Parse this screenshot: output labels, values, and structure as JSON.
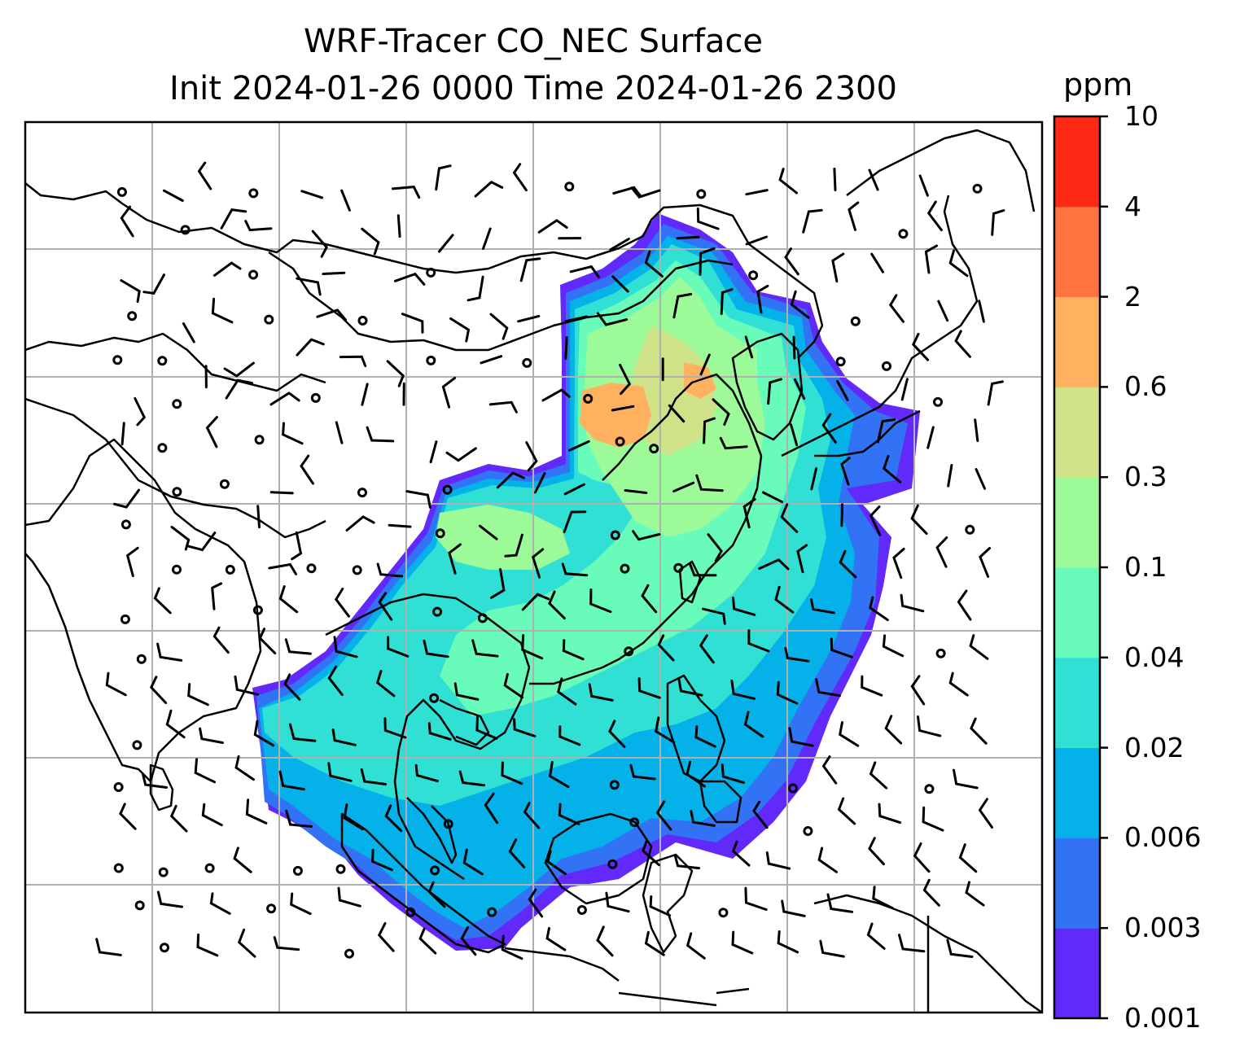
{
  "title": {
    "line1": "WRF-Tracer CO_NEC Surface",
    "line2": "Init 2024-01-26 0000 Time 2024-01-26 2300"
  },
  "colorbar": {
    "unit": "ppm",
    "ticks": [
      "0.001",
      "0.003",
      "0.006",
      "0.02",
      "0.04",
      "0.1",
      "0.3",
      "0.6",
      "2",
      "4",
      "10"
    ],
    "colors": [
      "#6229fb",
      "#3272f4",
      "#05b1e9",
      "#30e0d4",
      "#69fbba",
      "#9cfb98",
      "#cfe287",
      "#ffb160",
      "#ff7440",
      "#ff2a16"
    ]
  },
  "map": {
    "field": "CO_NEC surface concentration",
    "wind_symbol": "wind barbs",
    "calm_symbol": "circle",
    "gridlines": true,
    "coastlines": true
  }
}
